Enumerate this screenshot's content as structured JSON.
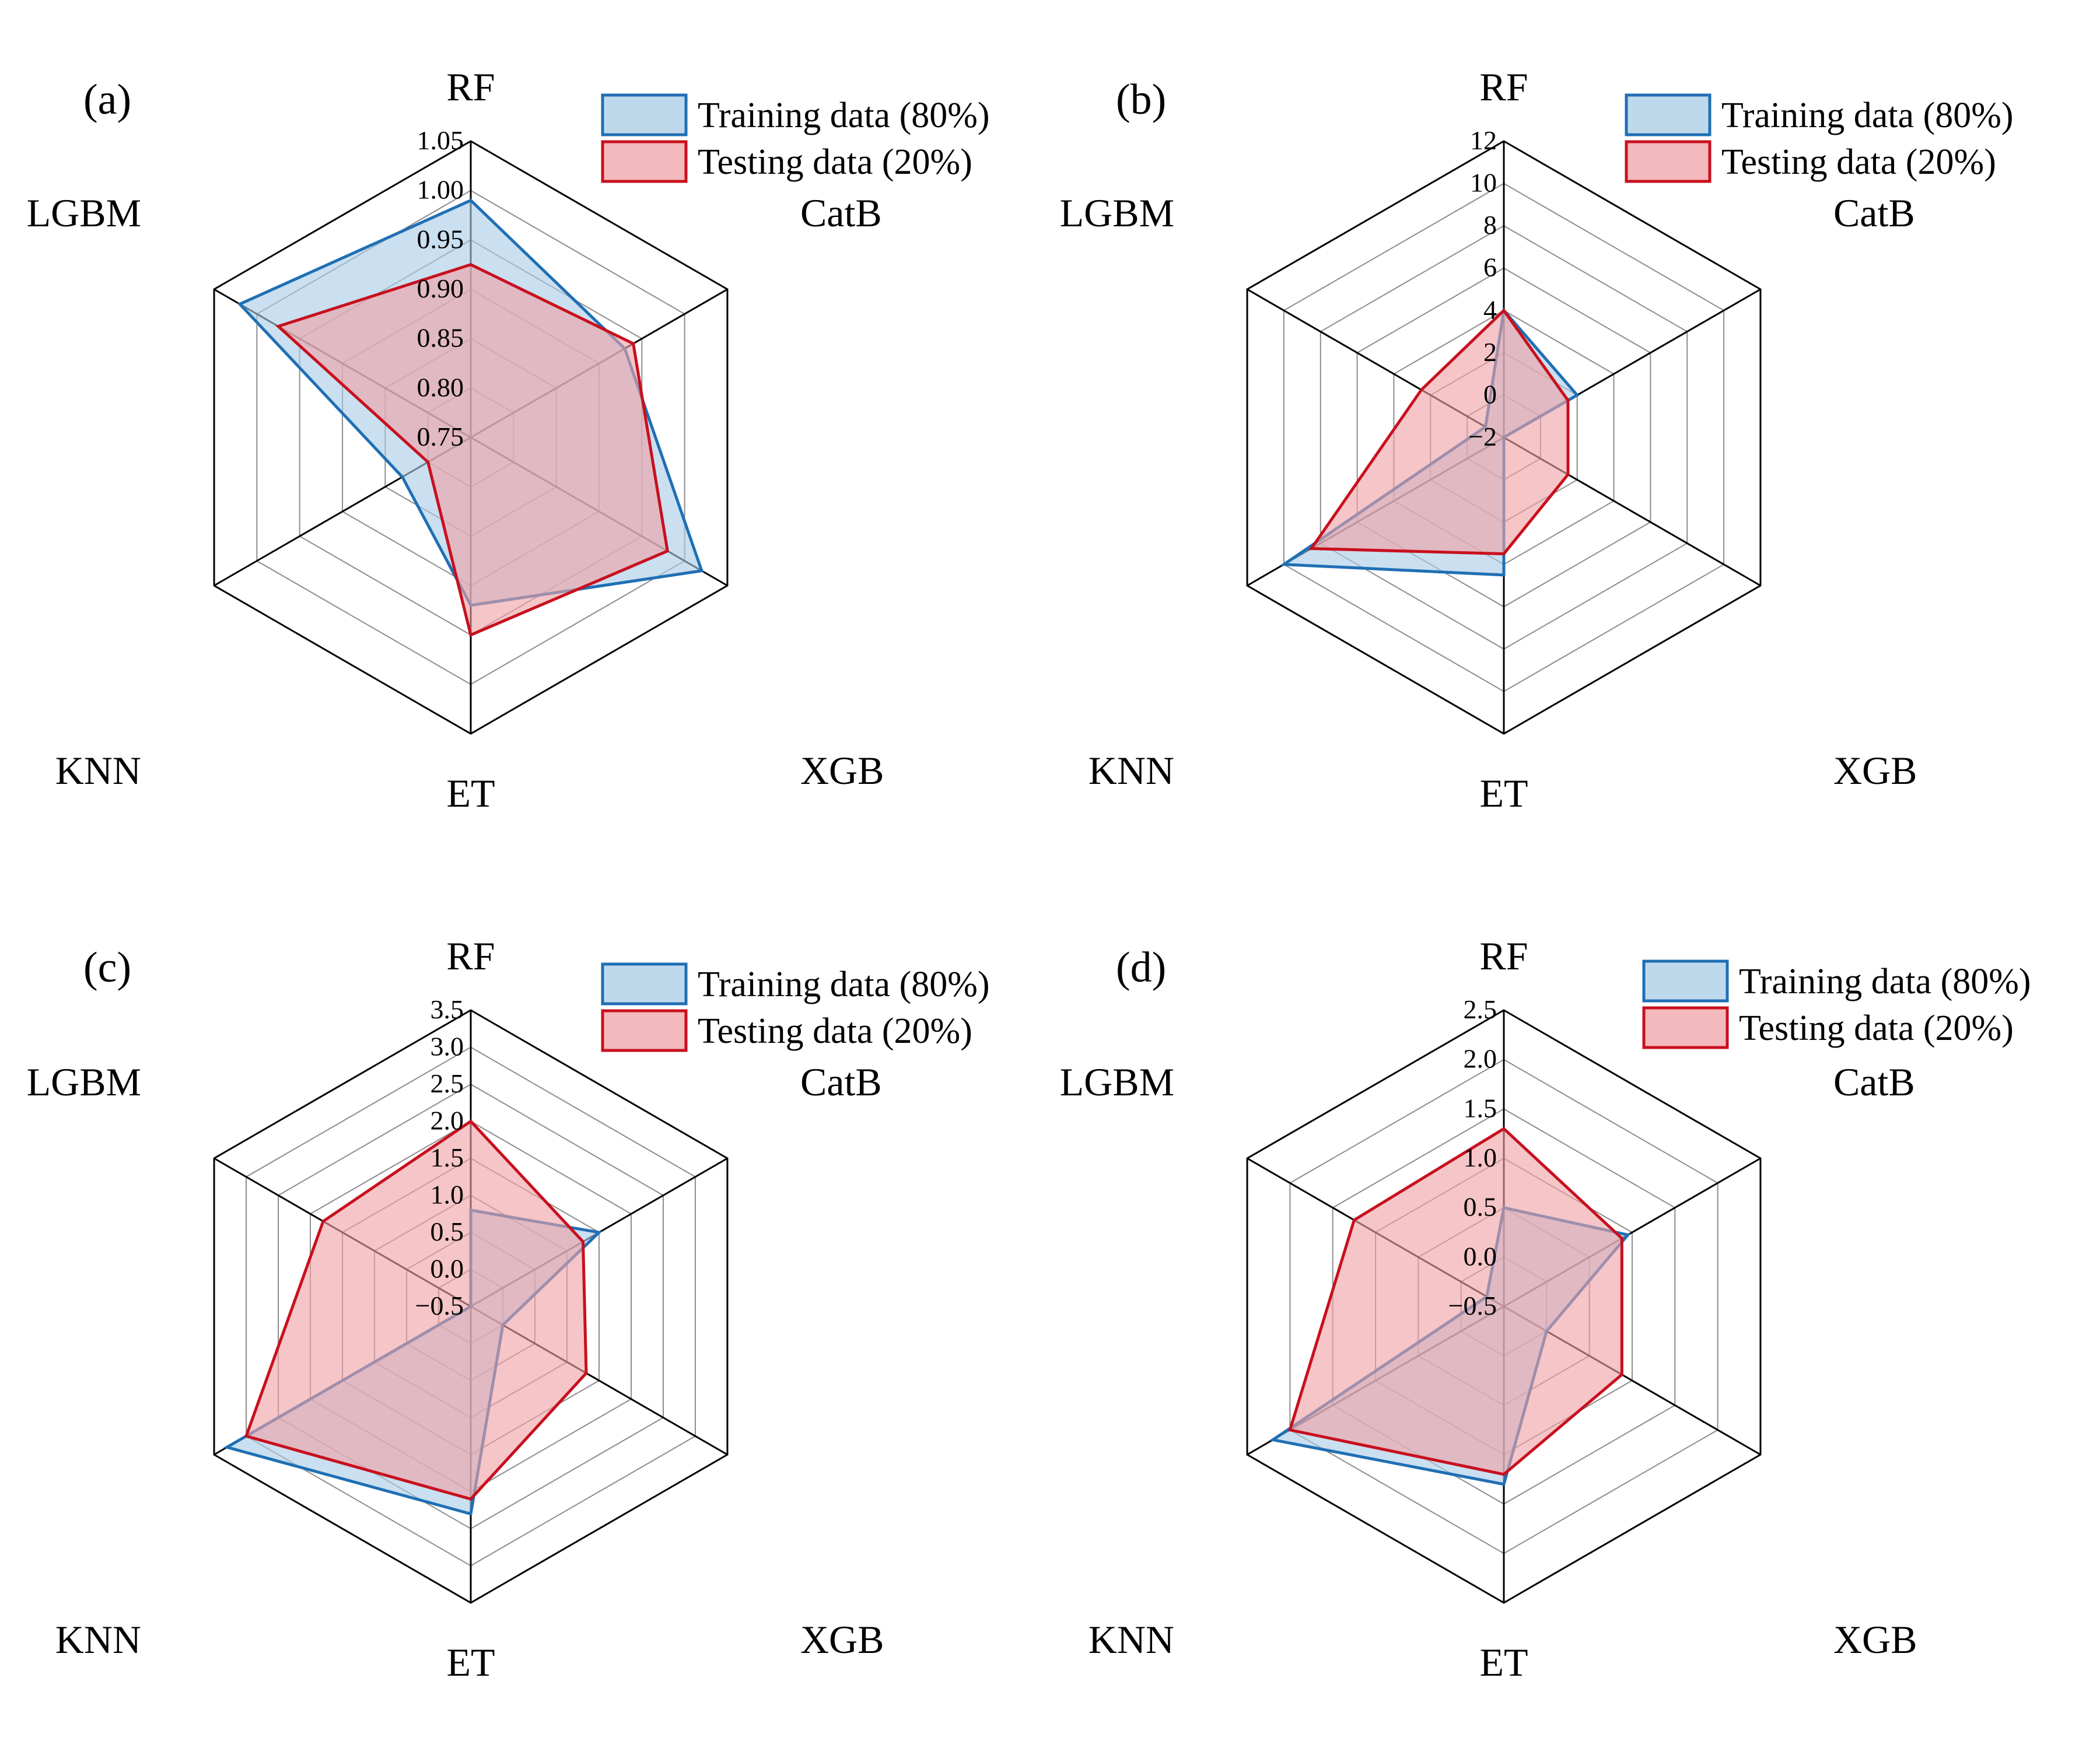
{
  "chart_data": [
    {
      "type": "radar",
      "panel_label": "(a)",
      "axes": [
        "RF",
        "CatB",
        "XGB",
        "ET",
        "KNN",
        "LGBM"
      ],
      "ticks": [
        "0.75",
        "0.80",
        "0.85",
        "0.90",
        "0.95",
        "1.00",
        "1.05"
      ],
      "range": [
        0.75,
        1.05
      ],
      "grid": true,
      "legend_position": "top-right",
      "series": [
        {
          "name": "Training data (80%)",
          "values": [
            0.99,
            0.93,
            1.02,
            0.92,
            0.83,
            1.02
          ],
          "color": "#1f6fb4",
          "fill": "#a9cce6"
        },
        {
          "name": "Testing data (20%)",
          "values": [
            0.925,
            0.94,
            0.98,
            0.95,
            0.8,
            0.975
          ],
          "color": "#c8101e",
          "fill": "#efa2a6"
        }
      ]
    },
    {
      "type": "radar",
      "panel_label": "(b)",
      "axes": [
        "RF",
        "CatB",
        "XGB",
        "ET",
        "KNN",
        "LGBM"
      ],
      "ticks": [
        "-2",
        "0",
        "2",
        "4",
        "6",
        "8",
        "10",
        "12"
      ],
      "range": [
        -2,
        12
      ],
      "grid": true,
      "legend_position": "top-right",
      "series": [
        {
          "name": "Training data (80%)",
          "values": [
            4.0,
            2.0,
            -2.0,
            4.5,
            10.0,
            -1.0
          ],
          "color": "#1f6fb4",
          "fill": "#a9cce6"
        },
        {
          "name": "Testing data (20%)",
          "values": [
            4.0,
            1.5,
            1.5,
            3.5,
            8.5,
            2.5
          ],
          "color": "#c8101e",
          "fill": "#efa2a6"
        }
      ]
    },
    {
      "type": "radar",
      "panel_label": "(c)",
      "axes": [
        "RF",
        "CatB",
        "XGB",
        "ET",
        "KNN",
        "LGBM"
      ],
      "ticks": [
        "-0.5",
        "0.0",
        "0.5",
        "1.0",
        "1.5",
        "2.0",
        "2.5",
        "3.0",
        "3.5"
      ],
      "range": [
        -0.5,
        3.5
      ],
      "grid": true,
      "legend_position": "top-right",
      "series": [
        {
          "name": "Training data (80%)",
          "values": [
            0.8,
            1.5,
            0.0,
            2.3,
            3.3,
            -0.5
          ],
          "color": "#1f6fb4",
          "fill": "#a9cce6"
        },
        {
          "name": "Testing data (20%)",
          "values": [
            2.0,
            1.25,
            1.3,
            2.1,
            3.0,
            1.8
          ],
          "color": "#c8101e",
          "fill": "#efa2a6"
        }
      ]
    },
    {
      "type": "radar",
      "panel_label": "(d)",
      "axes": [
        "RF",
        "CatB",
        "XGB",
        "ET",
        "KNN",
        "LGBM"
      ],
      "ticks": [
        "-0.5",
        "0.0",
        "0.5",
        "1.0",
        "1.5",
        "2.0",
        "2.5"
      ],
      "range": [
        -0.5,
        2.5
      ],
      "grid": true,
      "legend_position": "top-right",
      "series": [
        {
          "name": "Training data (80%)",
          "values": [
            0.5,
            0.95,
            0.0,
            1.3,
            2.2,
            -0.3
          ],
          "color": "#1f6fb4",
          "fill": "#a9cce6"
        },
        {
          "name": "Testing data (20%)",
          "values": [
            1.3,
            0.88,
            0.88,
            1.2,
            2.0,
            1.25
          ],
          "color": "#c8101e",
          "fill": "#efa2a6"
        }
      ]
    }
  ]
}
